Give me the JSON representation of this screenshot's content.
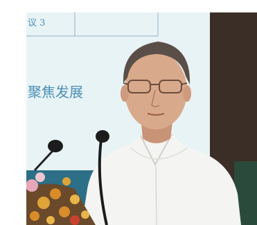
{
  "photo": {
    "slide_text_top": "议 3",
    "slide_text_main": "聚焦发展",
    "colors": {
      "slide_bg": "#e8f3f5",
      "slide_text": "#4a8fb6",
      "wall": "#3a2e26",
      "shirt": "#f4f4f2",
      "skin": "#d9a98c",
      "hair": "#5a4f48",
      "flowers": "#e0a338"
    }
  }
}
